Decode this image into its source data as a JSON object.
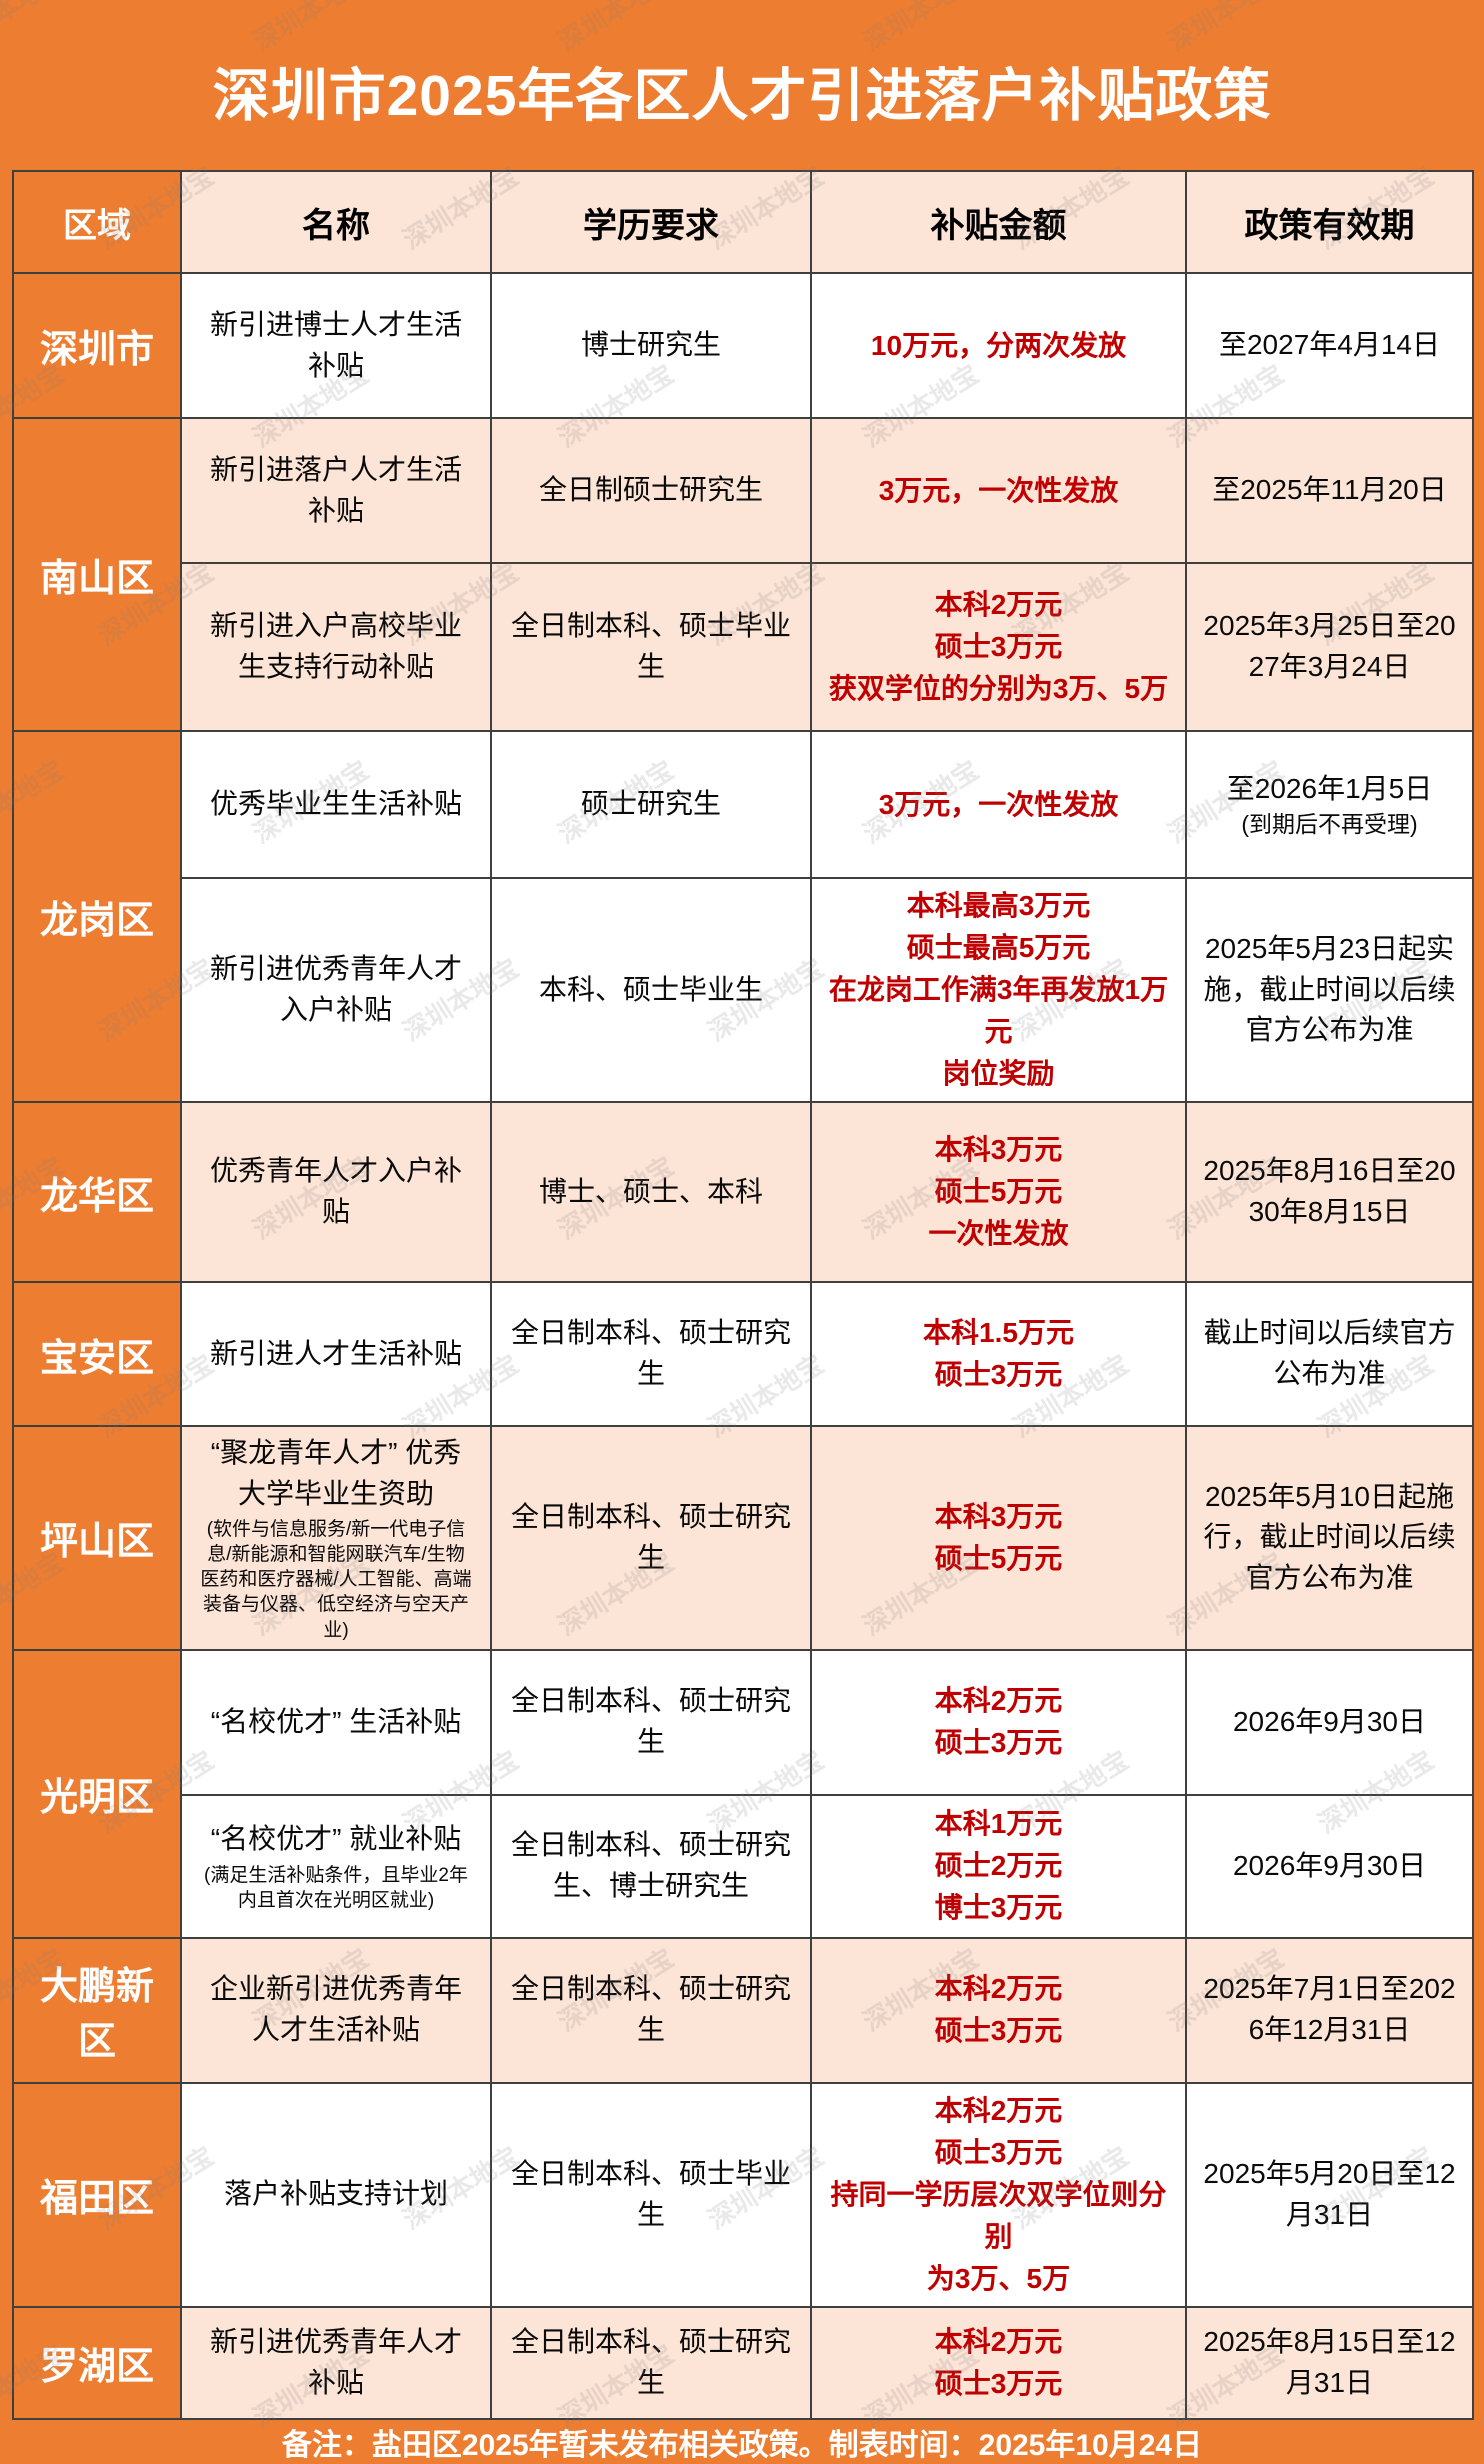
{
  "title": "深圳市2025年各区人才引进落户补贴政策",
  "watermark": "深圳本地宝",
  "footer": "备注：盐田区2025年暂未发布相关政策。制表时间：2025年10月24日",
  "colors": {
    "orange": "#ED7D31",
    "peach": "#FCE4D6",
    "red": "#C00000",
    "border": "#3F3F3F",
    "ink": "#0A0A0A"
  },
  "table": {
    "headers": [
      "区域",
      "名称",
      "学历要求",
      "补贴金额",
      "政策有效期"
    ],
    "groups": [
      {
        "region": "深圳市",
        "shade": "white",
        "rows": [
          {
            "name": "新引进博士人才生活补贴",
            "education": "博士研究生",
            "amount_lines": [
              "10万元，分两次发放"
            ],
            "validity": "至2027年4月14日"
          }
        ]
      },
      {
        "region": "南山区",
        "shade": "peach",
        "rows": [
          {
            "name": "新引进落户人才生活补贴",
            "education": "全日制硕士研究生",
            "amount_lines": [
              "3万元，一次性发放"
            ],
            "validity": "至2025年11月20日"
          },
          {
            "name": "新引进入户高校毕业生支持行动补贴",
            "education": "全日制本科、硕士毕业生",
            "amount_lines": [
              "本科2万元",
              "硕士3万元",
              "获双学位的分别为3万、5万"
            ],
            "validity": "2025年3月25日至2027年3月24日"
          }
        ]
      },
      {
        "region": "龙岗区",
        "shade": "white",
        "rows": [
          {
            "name": "优秀毕业生生活补贴",
            "education": "硕士研究生",
            "amount_lines": [
              "3万元，一次性发放"
            ],
            "validity": "至2026年1月5日",
            "validity_note": "(到期后不再受理)"
          },
          {
            "name": "新引进优秀青年人才入户补贴",
            "education": "本科、硕士毕业生",
            "amount_lines": [
              "本科最高3万元",
              "硕士最高5万元",
              "在龙岗工作满3年再发放1万元",
              "岗位奖励"
            ],
            "validity": "2025年5月23日起实施，截止时间以后续官方公布为准"
          }
        ]
      },
      {
        "region": "龙华区",
        "shade": "peach",
        "rows": [
          {
            "name": "优秀青年人才入户补贴",
            "education": "博士、硕士、本科",
            "amount_lines": [
              "本科3万元",
              "硕士5万元",
              "一次性发放"
            ],
            "validity": "2025年8月16日至2030年8月15日"
          }
        ]
      },
      {
        "region": "宝安区",
        "shade": "white",
        "rows": [
          {
            "name": "新引进人才生活补贴",
            "education": "全日制本科、硕士研究生",
            "amount_lines": [
              "本科1.5万元",
              "硕士3万元"
            ],
            "validity": "截止时间以后续官方公布为准"
          }
        ]
      },
      {
        "region": "坪山区",
        "shade": "peach",
        "rows": [
          {
            "name": "“聚龙青年人才” 优秀大学毕业生资助",
            "name_note": "(软件与信息服务/新一代电子信息/新能源和智能网联汽车/生物医药和医疗器械/人工智能、高端装备与仪器、低空经济与空天产业)",
            "education": "全日制本科、硕士研究生",
            "amount_lines": [
              "本科3万元",
              "硕士5万元"
            ],
            "validity": "2025年5月10日起施行，截止时间以后续官方公布为准"
          }
        ]
      },
      {
        "region": "光明区",
        "shade": "white",
        "rows": [
          {
            "name": "“名校优才” 生活补贴",
            "education": "全日制本科、硕士研究生",
            "amount_lines": [
              "本科2万元",
              "硕士3万元"
            ],
            "validity": "2026年9月30日"
          },
          {
            "name": "“名校优才” 就业补贴",
            "name_note": "(满足生活补贴条件，且毕业2年内且首次在光明区就业)",
            "education": "全日制本科、硕士研究生、博士研究生",
            "amount_lines": [
              "本科1万元",
              "硕士2万元",
              "博士3万元"
            ],
            "validity": "2026年9月30日"
          }
        ]
      },
      {
        "region": "大鹏新区",
        "shade": "peach",
        "rows": [
          {
            "name": "企业新引进优秀青年人才生活补贴",
            "education": "全日制本科、硕士研究生",
            "amount_lines": [
              "本科2万元",
              "硕士3万元"
            ],
            "validity": "2025年7月1日至2026年12月31日"
          }
        ]
      },
      {
        "region": "福田区",
        "shade": "white",
        "rows": [
          {
            "name": "落户补贴支持计划",
            "education": "全日制本科、硕士毕业生",
            "amount_lines": [
              "本科2万元",
              "硕士3万元",
              "持同一学历层次双学位则分别",
              "为3万、5万"
            ],
            "validity": "2025年5月20日至12月31日"
          }
        ]
      },
      {
        "region": "罗湖区",
        "shade": "peach",
        "rows": [
          {
            "name": "新引进优秀青年人才补贴",
            "education": "全日制本科、硕士研究生",
            "amount_lines": [
              "本科2万元",
              "硕士3万元"
            ],
            "validity": "2025年8月15日至12月31日"
          }
        ]
      }
    ]
  }
}
